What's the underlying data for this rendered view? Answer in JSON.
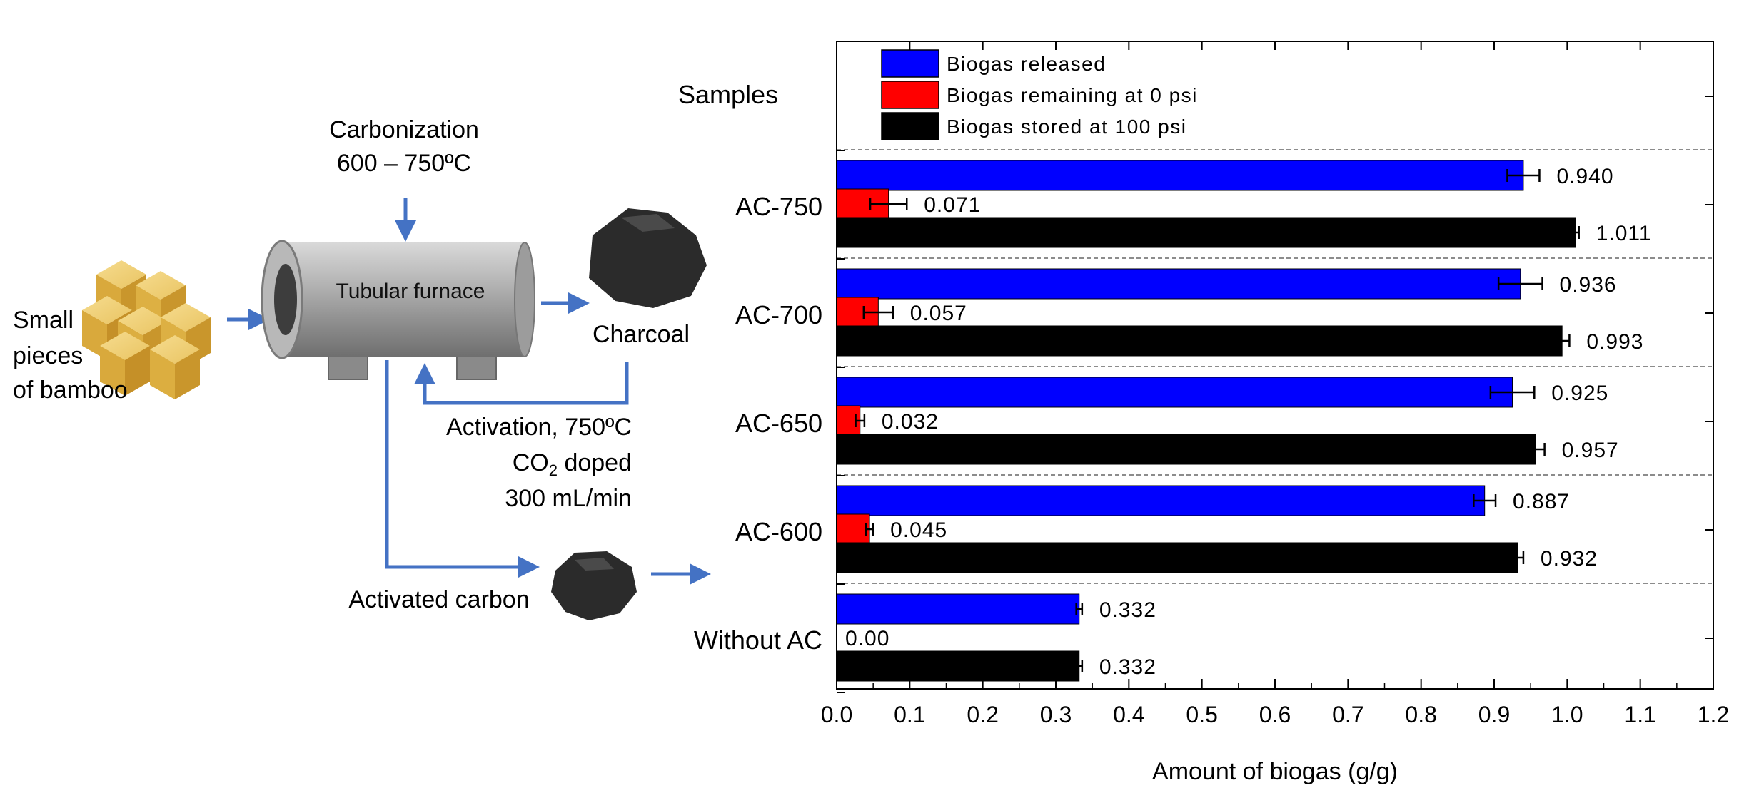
{
  "schematic": {
    "bamboo_label": [
      "Small",
      "pieces",
      "of bamboo"
    ],
    "carbonization_label": "Carbonization",
    "carbonization_temp": "600 – 750ºC",
    "furnace_label": "Tubular furnace",
    "charcoal_label": "Charcoal",
    "activation_line1": "Activation, 750ºC",
    "activation_line2_main": "CO",
    "activation_line2_sub": "2",
    "activation_line2_tail": " doped",
    "activation_line3": "300 mL/min",
    "activated_carbon_label": "Activated carbon",
    "colors": {
      "arrow": "#4472c4",
      "bamboo": "#e0b34a",
      "furnace": "#a8a8a8",
      "carbon": "#2b2b2b"
    }
  },
  "chart_data": {
    "type": "bar",
    "orientation": "horizontal",
    "categories_label": "Samples",
    "categories": [
      "AC-750",
      "AC-700",
      "AC-650",
      "AC-600",
      "Without AC"
    ],
    "series": [
      {
        "name": "Biogas released",
        "color": "#0000ff",
        "values": [
          0.94,
          0.936,
          0.925,
          0.887,
          0.332
        ],
        "errors": [
          0.022,
          0.03,
          0.03,
          0.015,
          0.004
        ],
        "labels": [
          "0.940",
          "0.936",
          "0.925",
          "0.887",
          "0.332"
        ]
      },
      {
        "name": "Biogas remaining at 0 psi",
        "color": "#ff0000",
        "values": [
          0.071,
          0.057,
          0.032,
          0.045,
          0.0
        ],
        "errors": [
          0.025,
          0.02,
          0.006,
          0.005,
          0.0
        ],
        "labels": [
          "0.071",
          "0.057",
          "0.032",
          "0.045",
          "0.00"
        ]
      },
      {
        "name": "Biogas stored at 100 psi",
        "color": "#000000",
        "values": [
          1.011,
          0.993,
          0.957,
          0.932,
          0.332
        ],
        "errors": [
          0.005,
          0.01,
          0.012,
          0.008,
          0.004
        ],
        "labels": [
          "1.011",
          "0.993",
          "0.957",
          "0.932",
          "0.332"
        ]
      }
    ],
    "xlabel": "Amount of biogas (g/g)",
    "xlim": [
      0.0,
      1.2
    ],
    "xticks": [
      "0.0",
      "0.1",
      "0.2",
      "0.3",
      "0.4",
      "0.5",
      "0.6",
      "0.7",
      "0.8",
      "0.9",
      "1.0",
      "1.1",
      "1.2"
    ],
    "legend_position": "top-left",
    "grid": false
  }
}
